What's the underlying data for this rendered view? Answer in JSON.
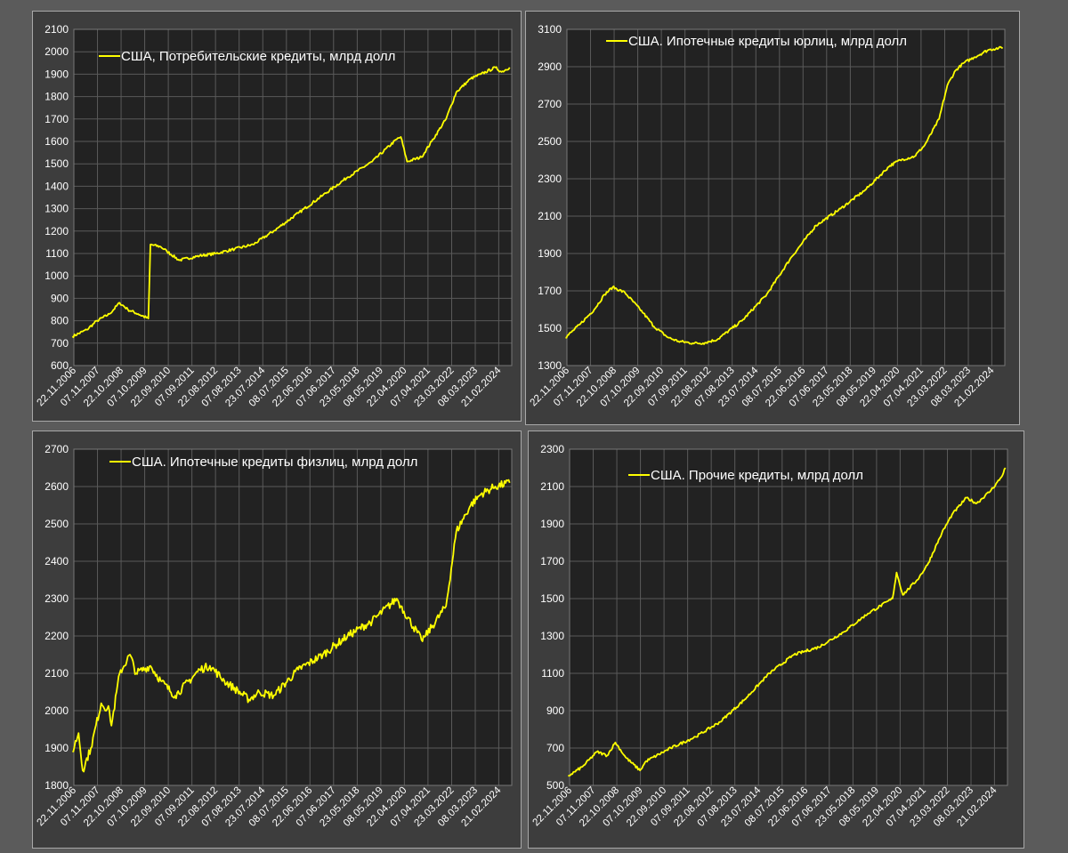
{
  "chart_data": [
    {
      "type": "line",
      "series": [
        {
          "name": "США, Потребительские кредиты, млрд долл",
          "x": [
            "2006-11",
            "2007-06",
            "2007-11",
            "2008-05",
            "2008-10",
            "2009-02",
            "2009-07",
            "2009-12",
            "2010-01",
            "2010-06",
            "2010-09",
            "2011-03",
            "2012-01",
            "2012-09",
            "2013-06",
            "2014-03",
            "2015-01",
            "2016-01",
            "2017-01",
            "2018-01",
            "2019-01",
            "2020-01",
            "2020-03",
            "2020-06",
            "2021-01",
            "2021-06",
            "2022-01",
            "2022-06",
            "2023-01",
            "2023-06",
            "2024-01",
            "2024-04",
            "2024-08"
          ],
          "values": [
            730,
            760,
            800,
            830,
            880,
            850,
            830,
            810,
            1140,
            1130,
            1110,
            1070,
            1090,
            1100,
            1120,
            1140,
            1200,
            1280,
            1360,
            1440,
            1510,
            1610,
            1620,
            1510,
            1530,
            1600,
            1700,
            1820,
            1880,
            1900,
            1930,
            1910,
            1930
          ]
        }
      ],
      "x_ticks": [
        "22.11.2006",
        "07.11.2007",
        "22.10.2008",
        "07.10.2009",
        "22.09.2010",
        "07.09.2011",
        "22.08.2012",
        "07.08.2013",
        "23.07.2014",
        "08.07.2015",
        "22.06.2016",
        "07.06.2017",
        "23.05.2018",
        "08.05.2019",
        "22.04.2020",
        "07.04.2021",
        "23.03.2022",
        "08.03.2023",
        "21.02.2024"
      ],
      "ylim": [
        600,
        2100
      ],
      "y_ticks": [
        600,
        700,
        800,
        900,
        1000,
        1100,
        1200,
        1300,
        1400,
        1500,
        1600,
        1700,
        1800,
        1900,
        2000,
        2100
      ],
      "legend": "top-left",
      "grid": true,
      "color": "#ffff00"
    },
    {
      "type": "line",
      "series": [
        {
          "name": "США. Ипотечные кредиты юрлиц, млрд долл",
          "x": [
            "2006-11",
            "2007-06",
            "2008-01",
            "2008-06",
            "2008-10",
            "2009-04",
            "2010-01",
            "2010-06",
            "2011-01",
            "2011-06",
            "2012-01",
            "2012-06",
            "2013-01",
            "2014-01",
            "2015-01",
            "2016-01",
            "2017-01",
            "2018-01",
            "2019-01",
            "2020-01",
            "2020-06",
            "2021-01",
            "2021-06",
            "2022-01",
            "2022-05",
            "2022-09",
            "2023-01",
            "2023-06",
            "2024-01",
            "2024-06",
            "2024-08"
          ],
          "values": [
            1450,
            1520,
            1600,
            1680,
            1720,
            1690,
            1580,
            1510,
            1450,
            1430,
            1420,
            1420,
            1440,
            1540,
            1680,
            1880,
            2050,
            2140,
            2240,
            2370,
            2400,
            2420,
            2480,
            2620,
            2800,
            2880,
            2920,
            2950,
            2990,
            3000,
            3000
          ]
        }
      ],
      "x_ticks": [
        "22.11.2006",
        "07.11.2007",
        "22.10.2008",
        "07.10.2009",
        "22.09.2010",
        "07.09.2011",
        "22.08.2012",
        "07.08.2013",
        "23.07.2014",
        "08.07.2015",
        "22.06.2016",
        "07.06.2017",
        "23.05.2018",
        "08.05.2019",
        "22.04.2020",
        "07.04.2021",
        "23.03.2022",
        "08.03.2023",
        "21.02.2024"
      ],
      "ylim": [
        1300,
        3100
      ],
      "y_ticks": [
        1300,
        1500,
        1700,
        1900,
        2100,
        2300,
        2500,
        2700,
        2900,
        3100
      ],
      "legend": "top-left",
      "grid": true,
      "color": "#ffff00"
    },
    {
      "type": "line",
      "series": [
        {
          "name": "США. Ипотечные кредиты физлиц, млрд долл",
          "x": [
            "2006-11",
            "2007-02",
            "2007-04",
            "2007-08",
            "2008-01",
            "2008-05",
            "2008-06",
            "2008-10",
            "2009-03",
            "2009-06",
            "2010-01",
            "2010-06",
            "2011-01",
            "2012-01",
            "2012-06",
            "2013-01",
            "2014-01",
            "2014-06",
            "2015-01",
            "2016-01",
            "2017-01",
            "2018-01",
            "2019-01",
            "2020-01",
            "2020-03",
            "2021-01",
            "2021-03",
            "2022-01",
            "2022-06",
            "2023-01",
            "2023-06",
            "2024-01",
            "2024-08"
          ],
          "values": [
            1890,
            1940,
            1840,
            1900,
            2020,
            2000,
            1960,
            2100,
            2150,
            2100,
            2120,
            2080,
            2040,
            2110,
            2120,
            2080,
            2030,
            2050,
            2040,
            2110,
            2150,
            2200,
            2240,
            2300,
            2280,
            2190,
            2200,
            2280,
            2480,
            2550,
            2580,
            2600,
            2610
          ]
        }
      ],
      "x_ticks": [
        "22.11.2006",
        "07.11.2007",
        "22.10.2008",
        "07.10.2009",
        "22.09.2010",
        "07.09.2011",
        "22.08.2012",
        "07.08.2013",
        "23.07.2014",
        "08.07.2015",
        "22.06.2016",
        "07.06.2017",
        "23.05.2018",
        "08.05.2019",
        "22.04.2020",
        "07.04.2021",
        "23.03.2022",
        "08.03.2023",
        "21.02.2024"
      ],
      "ylim": [
        1800,
        2700
      ],
      "y_ticks": [
        1800,
        1900,
        2000,
        2100,
        2200,
        2300,
        2400,
        2500,
        2600,
        2700
      ],
      "legend": "top-left",
      "grid": true,
      "color": "#ffff00"
    },
    {
      "type": "line",
      "series": [
        {
          "name": "США. Прочие кредиты, млрд долл",
          "x": [
            "2006-11",
            "2007-06",
            "2008-01",
            "2008-06",
            "2008-10",
            "2009-03",
            "2009-10",
            "2010-01",
            "2011-01",
            "2012-01",
            "2013-01",
            "2014-01",
            "2015-01",
            "2016-01",
            "2017-01",
            "2018-01",
            "2019-01",
            "2020-01",
            "2020-03",
            "2020-06",
            "2021-01",
            "2021-06",
            "2022-01",
            "2022-06",
            "2023-01",
            "2023-06",
            "2024-01",
            "2024-06",
            "2024-08"
          ],
          "values": [
            550,
            600,
            680,
            660,
            730,
            650,
            580,
            630,
            700,
            760,
            840,
            960,
            1100,
            1200,
            1240,
            1320,
            1420,
            1500,
            1640,
            1520,
            1600,
            1680,
            1850,
            1950,
            2040,
            2010,
            2080,
            2150,
            2200
          ]
        }
      ],
      "x_ticks": [
        "22.11.2006",
        "07.11.2007",
        "22.10.2008",
        "07.10.2009",
        "22.09.2010",
        "07.09.2011",
        "22.08.2012",
        "07.08.2013",
        "23.07.2014",
        "08.07.2015",
        "22.06.2016",
        "07.06.2017",
        "23.05.2018",
        "08.05.2019",
        "22.04.2020",
        "07.04.2021",
        "23.03.2022",
        "08.03.2023",
        "21.02.2024"
      ],
      "ylim": [
        500,
        2300
      ],
      "y_ticks": [
        500,
        700,
        900,
        1100,
        1300,
        1500,
        1700,
        1900,
        2100,
        2300
      ],
      "legend": "top-left",
      "grid": true,
      "color": "#ffff00"
    }
  ]
}
